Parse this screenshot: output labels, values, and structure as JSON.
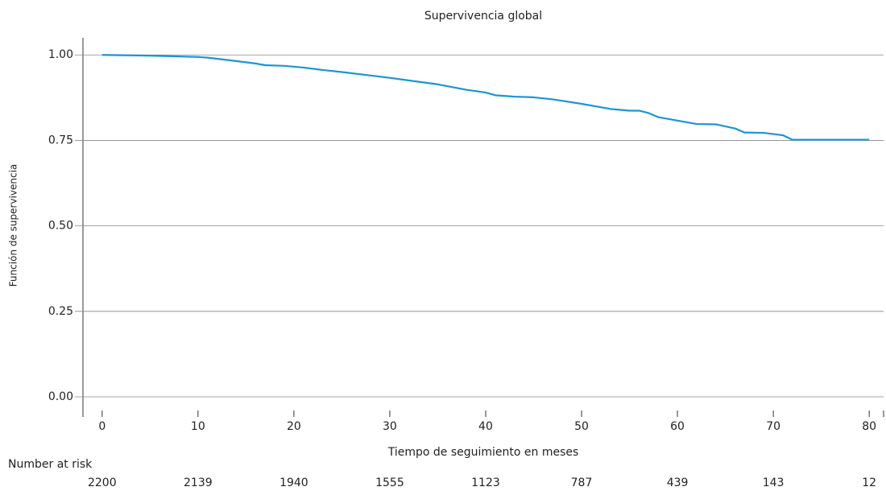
{
  "chart_data": {
    "type": "line",
    "title": "Supervivencia global",
    "xlabel": "Tiempo de seguimiento en meses",
    "ylabel": "Función de supervivencia",
    "x": [
      0,
      5,
      10,
      11,
      14,
      16,
      17,
      19,
      21,
      23,
      25,
      30,
      35,
      38,
      40,
      41,
      43,
      45,
      47,
      50,
      52,
      53,
      55,
      56,
      57,
      58,
      60,
      62,
      64,
      66,
      67,
      69,
      71,
      72,
      80
    ],
    "series": [
      {
        "name": "Supervivencia global",
        "color": "#1a95d6",
        "values": [
          1.0,
          0.998,
          0.994,
          0.992,
          0.982,
          0.975,
          0.97,
          0.968,
          0.963,
          0.956,
          0.95,
          0.933,
          0.914,
          0.898,
          0.89,
          0.882,
          0.878,
          0.876,
          0.87,
          0.857,
          0.847,
          0.842,
          0.837,
          0.837,
          0.83,
          0.818,
          0.808,
          0.798,
          0.797,
          0.785,
          0.773,
          0.772,
          0.765,
          0.752,
          0.752
        ]
      }
    ],
    "xlim": [
      -2,
      81.5
    ],
    "ylim": [
      -0.04,
      1.05
    ],
    "xticks": [
      0,
      10,
      20,
      30,
      40,
      50,
      60,
      70,
      80
    ],
    "yticks": [
      {
        "value": 0,
        "label": "0.00"
      },
      {
        "value": 0.25,
        "label": "0.25"
      },
      {
        "value": 0.5,
        "label": "0.50"
      },
      {
        "value": 0.75,
        "label": "0.75"
      },
      {
        "value": 1,
        "label": "1.00"
      }
    ],
    "grid": true,
    "risk_table": {
      "label": "Number at risk",
      "values": [
        2200,
        2139,
        1940,
        1555,
        1123,
        787,
        439,
        143,
        12
      ]
    }
  }
}
